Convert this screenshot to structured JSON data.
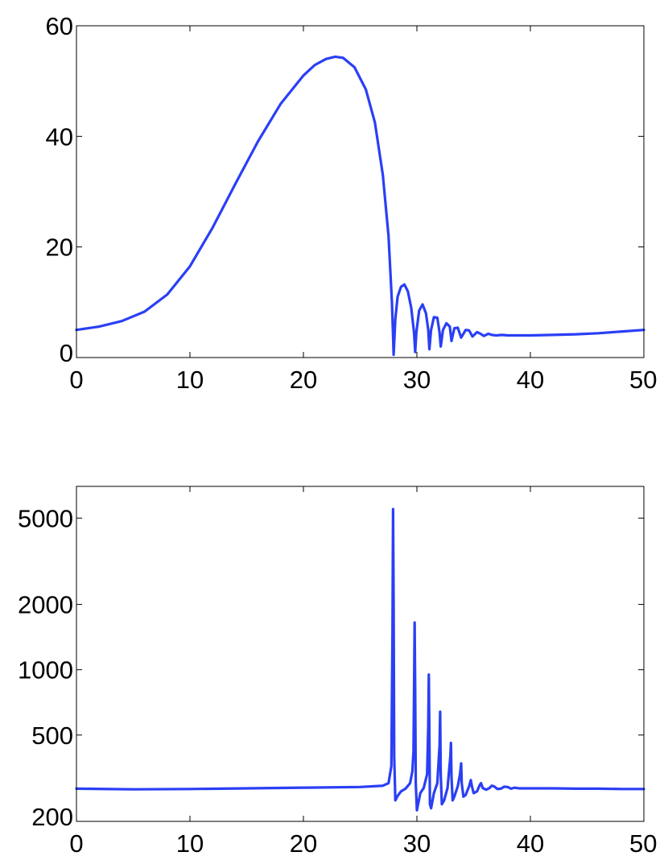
{
  "colors": {
    "series": "#2a3ff5",
    "axis": "#000000",
    "background": "#ffffff"
  },
  "chart_data": [
    {
      "type": "line",
      "title": "",
      "xlabel": "",
      "ylabel": "",
      "xlim": [
        0,
        50
      ],
      "ylim": [
        0,
        60
      ],
      "yscale": "linear",
      "grid": false,
      "xticks": [
        0,
        10,
        20,
        30,
        40,
        50
      ],
      "xtick_labels": [
        "0",
        "10",
        "20",
        "30",
        "40",
        "50"
      ],
      "yticks": [
        0,
        20,
        40,
        60
      ],
      "ytick_labels": [
        "0",
        "20",
        "40",
        "60"
      ],
      "series": [
        {
          "x": [
            0,
            2,
            4,
            6,
            8,
            10,
            12,
            14,
            16,
            18,
            20,
            21,
            22,
            22.8,
            23.5,
            24.5,
            25.5,
            26.3,
            27,
            27.5,
            27.8,
            27.9,
            27.95,
            28.1,
            28.3,
            28.6,
            28.9,
            29.2,
            29.5,
            29.75,
            29.85,
            29.95,
            30.2,
            30.5,
            30.8,
            31.0,
            31.1,
            31.25,
            31.5,
            31.8,
            32.0,
            32.1,
            32.3,
            32.6,
            32.9,
            33.05,
            33.3,
            33.6,
            33.9,
            34.3,
            34.6,
            34.9,
            35.3,
            35.6,
            35.9,
            36.3,
            36.6,
            37,
            37.5,
            38,
            40,
            42,
            44,
            46,
            48,
            50
          ],
          "y": [
            5,
            5.6,
            6.6,
            8.3,
            11.4,
            16.5,
            23.5,
            31.4,
            39.1,
            45.9,
            51,
            52.9,
            54,
            54.4,
            54.2,
            52.5,
            48.5,
            42.5,
            33,
            22,
            10,
            4,
            0.5,
            7,
            11,
            12.8,
            13.2,
            12,
            9,
            4.5,
            1,
            4.5,
            8.5,
            9.6,
            8,
            5,
            1.5,
            5,
            7.3,
            7.2,
            4.5,
            2,
            5,
            6.2,
            5.6,
            3,
            5.3,
            5.4,
            3.6,
            5,
            4.9,
            3.8,
            4.6,
            4.3,
            3.9,
            4.3,
            4.1,
            4,
            4.1,
            4,
            4,
            4.1,
            4.2,
            4.4,
            4.7,
            5
          ]
        }
      ]
    },
    {
      "type": "line",
      "title": "",
      "xlabel": "",
      "ylabel": "",
      "xlim": [
        0,
        50
      ],
      "ylim": [
        200,
        7000
      ],
      "yscale": "log",
      "grid": false,
      "xticks": [
        0,
        10,
        20,
        30,
        40,
        50
      ],
      "xtick_labels": [
        "0",
        "10",
        "20",
        "30",
        "40",
        "50"
      ],
      "yticks": [
        200,
        500,
        1000,
        2000,
        5000
      ],
      "ytick_labels": [
        "200",
        "500",
        "1000",
        "2000",
        "5000"
      ],
      "series": [
        {
          "x": [
            0,
            5,
            10,
            15,
            20,
            25,
            27,
            27.5,
            27.75,
            27.85,
            27.9,
            27.95,
            28.0,
            28.1,
            28.3,
            28.6,
            29.0,
            29.4,
            29.6,
            29.7,
            29.75,
            29.8,
            29.85,
            29.9,
            30.0,
            30.3,
            30.6,
            30.9,
            31.0,
            31.05,
            31.1,
            31.15,
            31.25,
            31.5,
            31.8,
            32.0,
            32.05,
            32.1,
            32.2,
            32.4,
            32.7,
            32.95,
            33.0,
            33.05,
            33.15,
            33.3,
            33.6,
            33.8,
            33.9,
            33.95,
            34.1,
            34.3,
            34.6,
            34.75,
            34.85,
            35.0,
            35.3,
            35.55,
            35.65,
            35.8,
            36.1,
            36.4,
            36.6,
            36.8,
            37.1,
            37.4,
            37.7,
            38.0,
            38.3,
            38.6,
            39,
            40,
            42,
            44,
            46,
            48,
            50
          ],
          "y": [
            283,
            281,
            282,
            284,
            286,
            288,
            292,
            300,
            360,
            1500,
            5500,
            2000,
            400,
            250,
            262,
            275,
            283,
            300,
            340,
            420,
            800,
            1650,
            800,
            300,
            225,
            270,
            285,
            330,
            550,
            950,
            500,
            240,
            230,
            270,
            300,
            450,
            640,
            330,
            240,
            250,
            285,
            400,
            460,
            320,
            250,
            260,
            290,
            330,
            370,
            300,
            260,
            265,
            290,
            310,
            290,
            270,
            275,
            295,
            300,
            285,
            280,
            285,
            292,
            290,
            282,
            283,
            289,
            288,
            283,
            286,
            284,
            284,
            284,
            283,
            283,
            282,
            282
          ]
        }
      ]
    }
  ]
}
